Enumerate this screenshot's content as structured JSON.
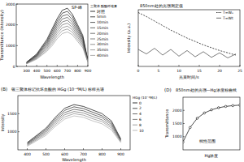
{
  "chart_data": [
    {
      "type": "line",
      "x_label": "Wavelength",
      "y_label": "Transmittance (Intensity)",
      "annotations": [
        "SP-峰"
      ],
      "legend_title": "三聚体 醋酸纤维素",
      "legend": "right",
      "x": [
        300,
        400,
        500,
        550,
        600,
        650,
        700,
        750,
        800,
        850,
        900
      ],
      "xlim": [
        200,
        900
      ],
      "xticks": [
        300,
        400,
        500,
        600,
        700,
        800,
        900
      ],
      "ylim": [
        0,
        3000
      ],
      "yticks": [
        0,
        1000,
        2000,
        3000
      ],
      "series": [
        {
          "name": "对照",
          "color": "#000000",
          "values": [
            200,
            600,
            1300,
            1800,
            2300,
            2700,
            2800,
            2500,
            2000,
            1500,
            300
          ]
        },
        {
          "name": "5min",
          "color": "#1a1a1a",
          "values": [
            190,
            560,
            1220,
            1700,
            2180,
            2560,
            2650,
            2380,
            1900,
            1420,
            280
          ]
        },
        {
          "name": "10min",
          "color": "#2e2e2e",
          "values": [
            180,
            530,
            1150,
            1600,
            2060,
            2420,
            2500,
            2250,
            1800,
            1350,
            270
          ]
        },
        {
          "name": "15min",
          "color": "#424242",
          "values": [
            170,
            500,
            1080,
            1500,
            1940,
            2280,
            2360,
            2120,
            1700,
            1270,
            260
          ]
        },
        {
          "name": "20min",
          "color": "#555555",
          "values": [
            160,
            470,
            1010,
            1400,
            1820,
            2140,
            2220,
            2000,
            1600,
            1200,
            250
          ]
        },
        {
          "name": "25min",
          "color": "#666666",
          "values": [
            150,
            440,
            940,
            1300,
            1700,
            2000,
            2080,
            1880,
            1500,
            1120,
            240
          ]
        },
        {
          "name": "30min",
          "color": "#777777",
          "values": [
            140,
            410,
            870,
            1200,
            1580,
            1860,
            1940,
            1760,
            1400,
            1050,
            230
          ]
        },
        {
          "name": "35min",
          "color": "#888888",
          "values": [
            130,
            380,
            800,
            1100,
            1460,
            1720,
            1800,
            1640,
            1300,
            980,
            220
          ]
        },
        {
          "name": "40min",
          "color": "#999999",
          "values": [
            120,
            350,
            730,
            1000,
            1340,
            1580,
            1660,
            1520,
            1200,
            900,
            210
          ]
        }
      ]
    },
    {
      "type": "line",
      "title": "850nm处的光强测定值",
      "x_label": "光束时间/s",
      "y_label": "Intensity (a.u.)",
      "legend": "upper right",
      "tick_labels": "x",
      "x": [
        0,
        2,
        4,
        6,
        8,
        10,
        12,
        14,
        16,
        18,
        20,
        22,
        24
      ],
      "xlim": [
        0,
        25
      ],
      "xticks": [
        0,
        5,
        10,
        15,
        20,
        25
      ],
      "ylim": [
        0,
        100
      ],
      "yticks": [],
      "series": [
        {
          "name": "T=W₀",
          "color": "#000000",
          "line_style": "dashed",
          "values": [
            95,
            88,
            80,
            72,
            64,
            57,
            50,
            44,
            38,
            33,
            28,
            24,
            20
          ]
        },
        {
          "name": "T=Wt",
          "color": "#444444",
          "values": [
            30,
            22,
            32,
            20,
            30,
            18,
            28,
            17,
            26,
            16,
            24,
            15,
            22
          ]
        }
      ]
    },
    {
      "type": "line",
      "subtitle": "(B)",
      "title": "银三聚体标记抗坏血酸的 HGg (10⁻⁴M/L) 标样光谱",
      "x_label": "Wavelength",
      "y_label": "Intensity",
      "legend_title": "HGg (10⁻⁴M/L)",
      "legend": "right",
      "x": [
        400,
        500,
        550,
        600,
        650,
        700,
        750,
        800,
        850,
        900
      ],
      "xlim": [
        350,
        950
      ],
      "xticks": [
        400,
        500,
        600,
        700,
        800,
        900
      ],
      "ylim": [
        500,
        2000
      ],
      "yticks": [
        1000,
        1500
      ],
      "series": [
        {
          "name": "0",
          "color": "#000000",
          "values": [
            700,
            1100,
            1400,
            1650,
            1750,
            1700,
            1600,
            1500,
            1300,
            800
          ]
        },
        {
          "name": "2",
          "color": "#222222",
          "values": [
            680,
            1060,
            1350,
            1590,
            1690,
            1640,
            1540,
            1440,
            1250,
            780
          ]
        },
        {
          "name": "4",
          "color": "#444444",
          "values": [
            660,
            1020,
            1300,
            1530,
            1620,
            1580,
            1480,
            1390,
            1200,
            760
          ]
        },
        {
          "name": "6",
          "color": "#666666",
          "values": [
            640,
            980,
            1250,
            1470,
            1560,
            1520,
            1420,
            1330,
            1150,
            740
          ]
        },
        {
          "name": "8",
          "color": "#888888",
          "values": [
            620,
            940,
            1200,
            1410,
            1500,
            1460,
            1360,
            1280,
            1100,
            720
          ]
        },
        {
          "name": "10",
          "color": "#aaaaaa",
          "values": [
            600,
            900,
            1150,
            1350,
            1440,
            1400,
            1300,
            1220,
            1050,
            700
          ]
        }
      ]
    },
    {
      "type": "line",
      "subtitle": "(D)",
      "title": "850nm处的光强—Hg浓度标曲线",
      "x_label": "Hg浓度",
      "y_label": "Transmittance",
      "annotations": [
        "线性范围"
      ],
      "tick_labels": "y",
      "marker": "circle",
      "x": [
        0,
        1,
        2,
        3,
        4,
        5,
        6,
        7,
        8
      ],
      "xlim": [
        0,
        8
      ],
      "xticks": [],
      "ylim": [
        500,
        2500
      ],
      "yticks": [
        1000,
        1500,
        2000
      ],
      "series": [
        {
          "name": "Hg",
          "color": "#000000",
          "values": [
            800,
            1350,
            1700,
            1900,
            2020,
            2100,
            2150,
            2180,
            2200
          ]
        }
      ]
    }
  ]
}
